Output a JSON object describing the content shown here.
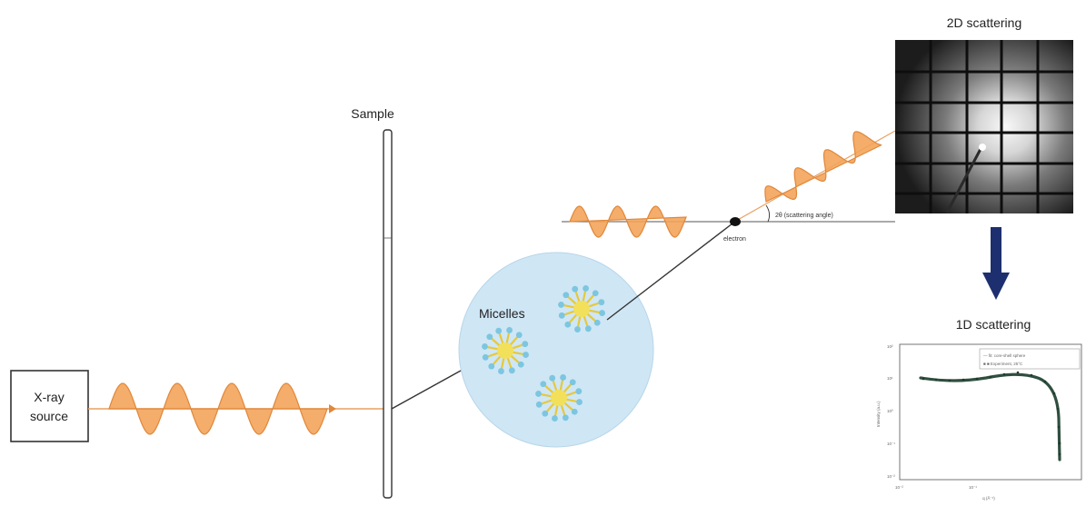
{
  "labels": {
    "xray_source_line1": "X-ray",
    "xray_source_line2": "source",
    "sample": "Sample",
    "micelles": "Micelles",
    "electron": "electron",
    "scattering_angle": "2θ (scattering angle)",
    "scattering_2d": "2D scattering",
    "scattering_1d": "1D scattering"
  },
  "colors": {
    "wave_orange": "#f3a45a",
    "wave_edge": "#e0873a",
    "beam": "#e8a060",
    "sample_circle": "#cfe6f5",
    "micelle_core": "#f2e05a",
    "micelle_head": "#7cc6e0",
    "arrow": "#1d2f6f",
    "curve": "#2f4f3f"
  },
  "plot_1d": {
    "y_tick_labels": [
      "10²",
      "10¹",
      "10⁰",
      "10⁻¹",
      "10⁻²"
    ],
    "x_tick_labels": [
      "10⁻²",
      "10⁻¹"
    ],
    "x_axis_label": "q (Å⁻¹)",
    "y_axis_label": "Intensity (a.u.)",
    "legend": [
      "— fit: core-shell sphere",
      "■ ■  Experiment, 25°C"
    ]
  }
}
